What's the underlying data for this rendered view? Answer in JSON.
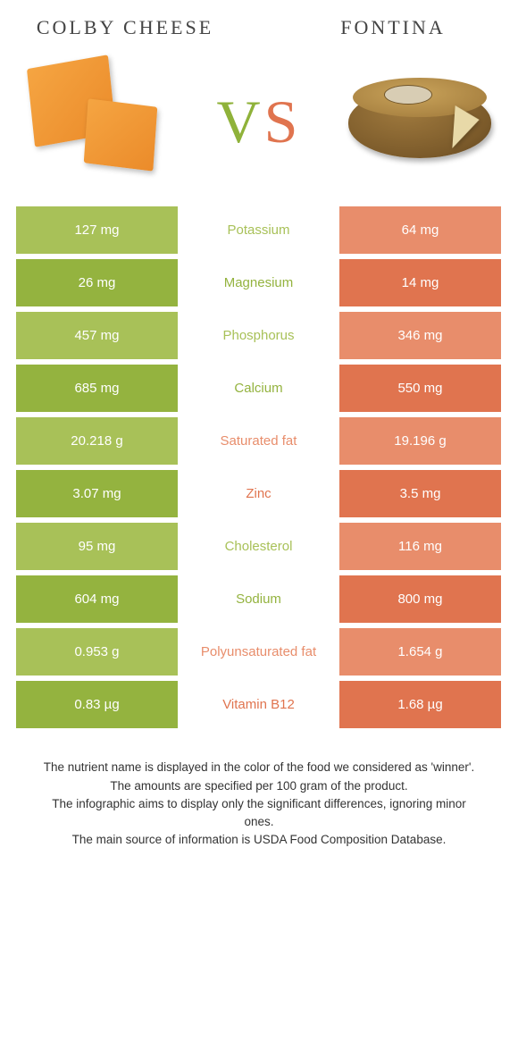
{
  "titles": {
    "left": "Colby Cheese",
    "right": "Fontina"
  },
  "vs": {
    "v": "V",
    "s": "S"
  },
  "colors": {
    "green_light": "#a8c158",
    "green_dark": "#94b33f",
    "orange_light": "#e88d6b",
    "orange_dark": "#e0744f",
    "text": "#ffffff"
  },
  "table": {
    "rows": [
      {
        "left": "127 mg",
        "label": "Potassium",
        "right": "64 mg",
        "winner": "left"
      },
      {
        "left": "26 mg",
        "label": "Magnesium",
        "right": "14 mg",
        "winner": "left"
      },
      {
        "left": "457 mg",
        "label": "Phosphorus",
        "right": "346 mg",
        "winner": "left"
      },
      {
        "left": "685 mg",
        "label": "Calcium",
        "right": "550 mg",
        "winner": "left"
      },
      {
        "left": "20.218 g",
        "label": "Saturated fat",
        "right": "19.196 g",
        "winner": "right"
      },
      {
        "left": "3.07 mg",
        "label": "Zinc",
        "right": "3.5 mg",
        "winner": "right"
      },
      {
        "left": "95 mg",
        "label": "Cholesterol",
        "right": "116 mg",
        "winner": "left"
      },
      {
        "left": "604 mg",
        "label": "Sodium",
        "right": "800 mg",
        "winner": "left"
      },
      {
        "left": "0.953 g",
        "label": "Polyunsaturated fat",
        "right": "1.654 g",
        "winner": "right"
      },
      {
        "left": "0.83 µg",
        "label": "Vitamin B12",
        "right": "1.68 µg",
        "winner": "right"
      }
    ]
  },
  "footer": [
    "The nutrient name is displayed in the color of the food we considered as 'winner'.",
    "The amounts are specified per 100 gram of the product.",
    "The infographic aims to display only the significant differences, ignoring minor ones.",
    "The main source of information is USDA Food Composition Database."
  ]
}
